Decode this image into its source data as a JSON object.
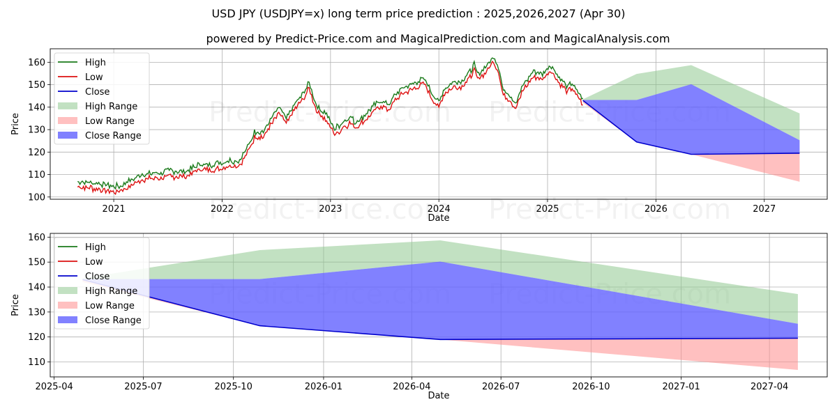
{
  "title": "USD JPY (USDJPY=x) long term price prediction : 2025,2026,2027 (Apr 30)",
  "subtitle": "powered by Predict-Price.com and MagicalPrediction.com and MagicalAnalysis.com",
  "watermark": "Predict-Price.com",
  "colors": {
    "high": "#1a7a1a",
    "low": "#dd1111",
    "close": "#0000cc",
    "high_range": "#8fc98f",
    "low_range": "#ff8c8c",
    "close_range": "#6161ff"
  },
  "chart_data": [
    {
      "type": "line",
      "panel": "top",
      "xlabel": "Date",
      "ylabel": "Price",
      "xlim": [
        "2020-06-01",
        "2027-08-01"
      ],
      "ylim": [
        99,
        166
      ],
      "x_ticks": [
        "2021",
        "2022",
        "2023",
        "2024",
        "2025",
        "2026",
        "2027"
      ],
      "y_ticks": [
        100,
        110,
        120,
        130,
        140,
        150,
        160
      ],
      "grid": true,
      "legend_position": "top-left",
      "legend": [
        "High",
        "Low",
        "Close",
        "High Range",
        "Low Range",
        "Close Range"
      ],
      "history": {
        "x": [
          "2020-09-01",
          "2020-10-15",
          "2020-12-01",
          "2021-01-15",
          "2021-03-01",
          "2021-04-15",
          "2021-06-01",
          "2021-07-15",
          "2021-09-01",
          "2021-10-15",
          "2021-12-01",
          "2022-01-15",
          "2022-03-01",
          "2022-03-20",
          "2022-04-20",
          "2022-05-20",
          "2022-06-20",
          "2022-07-15",
          "2022-08-05",
          "2022-09-01",
          "2022-10-01",
          "2022-10-21",
          "2022-11-15",
          "2022-12-15",
          "2023-01-15",
          "2023-02-15",
          "2023-03-10",
          "2023-03-25",
          "2023-04-20",
          "2023-05-20",
          "2023-06-20",
          "2023-07-15",
          "2023-08-15",
          "2023-09-15",
          "2023-10-15",
          "2023-11-13",
          "2023-12-15",
          "2024-01-01",
          "2024-01-20",
          "2024-02-20",
          "2024-03-15",
          "2024-04-15",
          "2024-04-29",
          "2024-05-10",
          "2024-06-10",
          "2024-07-03",
          "2024-07-20",
          "2024-08-05",
          "2024-08-25",
          "2024-09-16",
          "2024-10-10",
          "2024-11-15",
          "2024-12-15",
          "2025-01-10",
          "2025-02-10",
          "2025-03-10",
          "2025-03-25",
          "2025-04-10",
          "2025-04-30"
        ],
        "close": [
          105.8,
          105.2,
          104.3,
          103.5,
          106.5,
          109.2,
          109.5,
          110.5,
          110.2,
          113.4,
          113.3,
          114.8,
          115.3,
          119,
          127.8,
          128,
          134.5,
          138.5,
          133.5,
          140,
          144.8,
          149.5,
          139.5,
          136,
          129,
          132.5,
          134.2,
          132,
          134.5,
          138.5,
          142,
          140,
          145.5,
          148.2,
          150,
          151.5,
          144,
          141,
          147.5,
          150.2,
          150,
          154.5,
          157.8,
          153.5,
          157.2,
          161.5,
          157,
          146,
          145,
          140.5,
          148.5,
          155,
          153.5,
          157.8,
          152,
          148,
          150,
          146,
          142.5
        ]
      },
      "high_range": {
        "x": [
          "2025-04-30",
          "2025-10-28",
          "2026-04-30",
          "2027-04-30"
        ],
        "upper": [
          143.5,
          154.8,
          158.7,
          137.2
        ]
      },
      "close_range": {
        "x": [
          "2025-04-30",
          "2025-10-28",
          "2026-04-30",
          "2027-04-30"
        ],
        "upper": [
          143.2,
          143.2,
          150.2,
          125.3
        ]
      },
      "low_range": {
        "x": [
          "2025-04-30",
          "2025-10-28",
          "2026-04-30",
          "2027-04-30"
        ],
        "lower": [
          142,
          124.5,
          119,
          106.8
        ]
      },
      "close_forecast": {
        "x": [
          "2025-04-30",
          "2025-10-28",
          "2026-04-30",
          "2027-04-30"
        ],
        "values": [
          143,
          124.5,
          119,
          119.5
        ]
      }
    },
    {
      "type": "line",
      "panel": "bottom",
      "xlabel": "Date",
      "ylabel": "Price",
      "xlim": [
        "2025-03-28",
        "2027-05-30"
      ],
      "ylim": [
        104,
        161.5
      ],
      "x_ticks": [
        "2025-04",
        "2025-07",
        "2025-10",
        "2026-01",
        "2026-04",
        "2026-07",
        "2026-10",
        "2027-01",
        "2027-04"
      ],
      "y_ticks": [
        110,
        120,
        130,
        140,
        150,
        160
      ],
      "grid": true,
      "legend_position": "top-left",
      "legend": [
        "High",
        "Low",
        "Close",
        "High Range",
        "Low Range",
        "Close Range"
      ],
      "high_range": {
        "x": [
          "2025-04-30",
          "2025-10-28",
          "2026-04-30",
          "2027-04-30"
        ],
        "upper": [
          143.5,
          154.8,
          158.7,
          137.2
        ]
      },
      "close_range": {
        "x": [
          "2025-04-30",
          "2025-10-28",
          "2026-04-30",
          "2027-04-30"
        ],
        "upper": [
          143.2,
          143.2,
          150.2,
          125.3
        ]
      },
      "low_range": {
        "x": [
          "2025-04-30",
          "2025-10-28",
          "2026-04-30",
          "2027-04-30"
        ],
        "lower": [
          142,
          124.5,
          119,
          106.8
        ]
      },
      "close_forecast": {
        "x": [
          "2025-04-30",
          "2025-10-28",
          "2026-04-30",
          "2027-04-30"
        ],
        "values": [
          143,
          124.5,
          119,
          119.5
        ]
      }
    }
  ]
}
